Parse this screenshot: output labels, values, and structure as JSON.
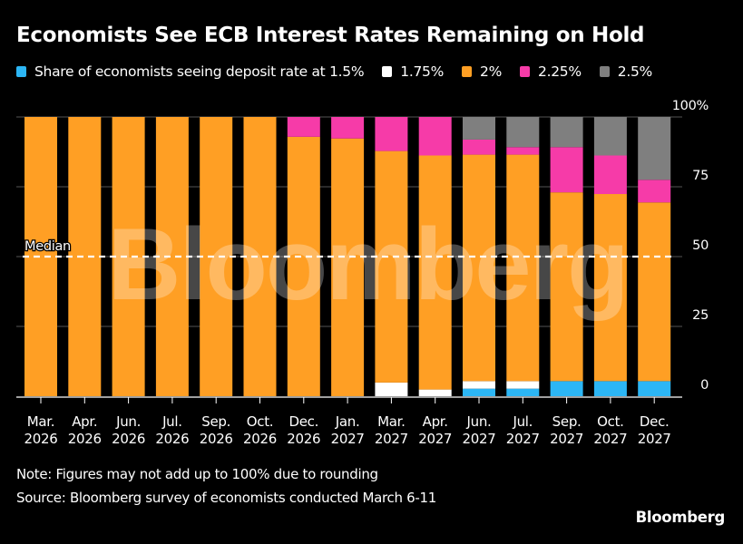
{
  "chart_data": {
    "type": "bar",
    "stacked": true,
    "title": "Economists See ECB Interest Rates Remaining on Hold",
    "xlabel": "",
    "ylabel": "",
    "ylim": [
      0,
      100
    ],
    "yticks": [
      {
        "value": 0,
        "label": "0"
      },
      {
        "value": 25,
        "label": "25"
      },
      {
        "value": 50,
        "label": "50"
      },
      {
        "value": 75,
        "label": "75"
      },
      {
        "value": 100,
        "label": "100%"
      }
    ],
    "grid": true,
    "legend_position": "top-left",
    "categories": [
      [
        "Mar.",
        "2026"
      ],
      [
        "Apr.",
        "2026"
      ],
      [
        "Jun.",
        "2026"
      ],
      [
        "Jul.",
        "2026"
      ],
      [
        "Sep.",
        "2026"
      ],
      [
        "Oct.",
        "2026"
      ],
      [
        "Dec.",
        "2026"
      ],
      [
        "Jan.",
        "2027"
      ],
      [
        "Mar.",
        "2027"
      ],
      [
        "Apr.",
        "2027"
      ],
      [
        "Jun.",
        "2027"
      ],
      [
        "Jul.",
        "2027"
      ],
      [
        "Sep.",
        "2027"
      ],
      [
        "Oct.",
        "2027"
      ],
      [
        "Dec.",
        "2027"
      ]
    ],
    "series": [
      {
        "name": "Share of economists seeing deposit rate at 1.5%",
        "color": "#2cb6f5",
        "values": [
          0,
          0,
          0,
          0,
          0,
          0,
          0,
          0,
          0,
          0,
          2.7,
          2.7,
          5.4,
          5.4,
          5.4
        ]
      },
      {
        "name": "1.75%",
        "color": "#ffffff",
        "values": [
          0,
          0,
          0,
          0,
          0,
          0,
          0,
          0,
          4.9,
          2.4,
          2.7,
          2.7,
          0,
          0,
          0
        ]
      },
      {
        "name": "2%",
        "color": "#ff9f24",
        "values": [
          100,
          100,
          100,
          100,
          100,
          100,
          92.9,
          92.3,
          82.9,
          83.8,
          81.1,
          81.1,
          67.6,
          67.0,
          64.0
        ]
      },
      {
        "name": "2.25%",
        "color": "#f63ba8",
        "values": [
          0,
          0,
          0,
          0,
          0,
          0,
          7.1,
          7.7,
          12.2,
          13.8,
          5.4,
          2.7,
          16.2,
          13.8,
          8.1
        ]
      },
      {
        "name": "2.5%",
        "color": "#7f7f7f",
        "values": [
          0,
          0,
          0,
          0,
          0,
          0,
          0,
          0,
          0,
          0,
          8.1,
          10.8,
          10.8,
          13.8,
          22.5
        ]
      }
    ],
    "annotations": [
      {
        "type": "hline",
        "value": 50,
        "label": "Median",
        "style": "dashed",
        "color": "#ffffff"
      }
    ],
    "watermark": "Bloomberg"
  },
  "legend": [
    {
      "label": "Share of economists seeing deposit rate at 1.5%",
      "color": "#2cb6f5"
    },
    {
      "label": "1.75%",
      "color": "#ffffff"
    },
    {
      "label": "2%",
      "color": "#ff9f24"
    },
    {
      "label": "2.25%",
      "color": "#f63ba8"
    },
    {
      "label": "2.5%",
      "color": "#7f7f7f"
    }
  ],
  "footer": {
    "note": "Note: Figures may not add up to 100% due to rounding",
    "source": "Source: Bloomberg survey of economists conducted March 6-11",
    "brand": "Bloomberg"
  }
}
